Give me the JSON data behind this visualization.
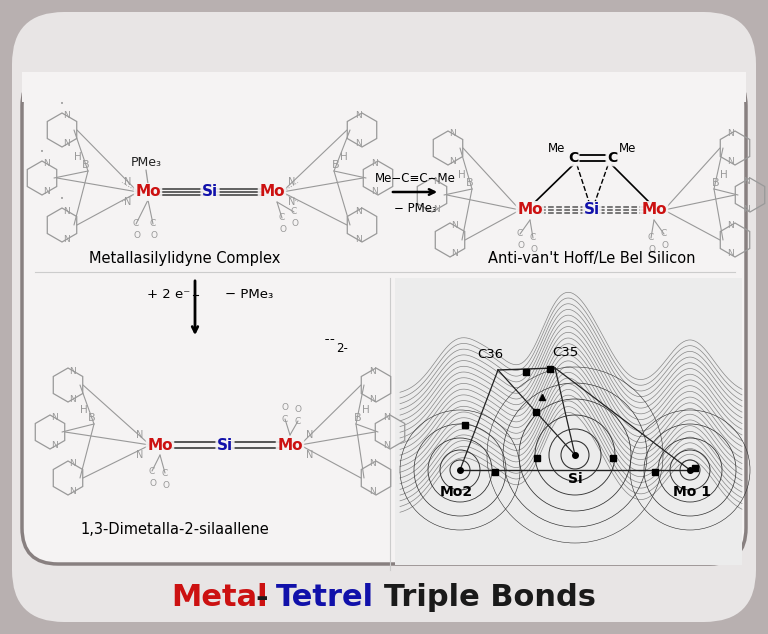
{
  "title_metal": "Metal",
  "title_dash": "-",
  "title_tetrel": "Tetrel",
  "title_rest": " Triple Bonds",
  "title_metal_color": "#CC1111",
  "title_tetrel_color": "#1111AA",
  "title_rest_color": "#1a1a1a",
  "bg_outer": "#b8b0b0",
  "bg_card": "#e8e5e5",
  "bg_white": "#f5f3f3",
  "border_color": "#888080",
  "mo_color": "#CC1111",
  "si_color": "#1111AA",
  "ligand_color": "#999999",
  "bond_color": "#555555",
  "text_color": "#222222",
  "top_left_label": "Metallasilylidyne Complex",
  "top_right_label": "Anti-van't Hoff/Le Bel Silicon",
  "bottom_left_label": "1,3-Dimetalla-2-silaallene",
  "figwidth": 7.68,
  "figheight": 6.34,
  "dpi": 100
}
